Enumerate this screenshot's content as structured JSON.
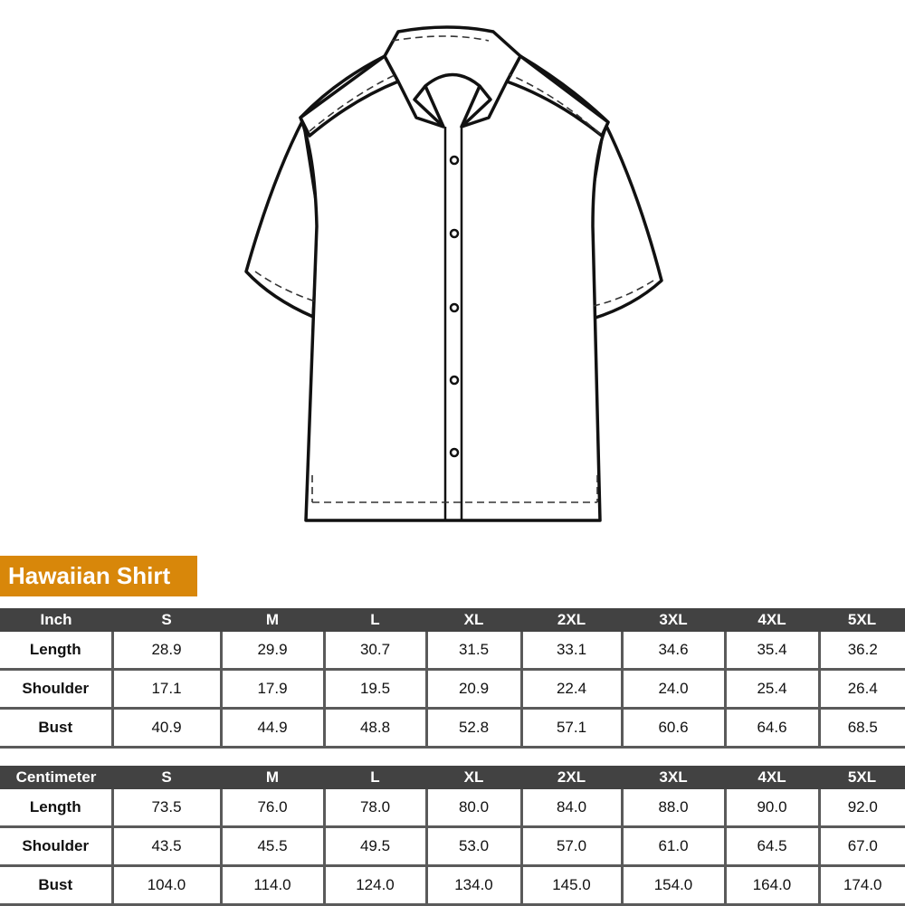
{
  "title": "Hawaiian Shirt",
  "accent_color": "#d8870a",
  "header_color": "#424242",
  "sizes": [
    "S",
    "M",
    "L",
    "XL",
    "2XL",
    "3XL",
    "4XL",
    "5XL"
  ],
  "tables": [
    {
      "unit": "Inch",
      "rows": [
        {
          "label": "Length",
          "values": [
            "28.9",
            "29.9",
            "30.7",
            "31.5",
            "33.1",
            "34.6",
            "35.4",
            "36.2"
          ]
        },
        {
          "label": "Shoulder",
          "values": [
            "17.1",
            "17.9",
            "19.5",
            "20.9",
            "22.4",
            "24.0",
            "25.4",
            "26.4"
          ]
        },
        {
          "label": "Bust",
          "values": [
            "40.9",
            "44.9",
            "48.8",
            "52.8",
            "57.1",
            "60.6",
            "64.6",
            "68.5"
          ]
        }
      ]
    },
    {
      "unit": "Centimeter",
      "rows": [
        {
          "label": "Length",
          "values": [
            "73.5",
            "76.0",
            "78.0",
            "80.0",
            "84.0",
            "88.0",
            "90.0",
            "92.0"
          ]
        },
        {
          "label": "Shoulder",
          "values": [
            "43.5",
            "45.5",
            "49.5",
            "53.0",
            "57.0",
            "61.0",
            "64.5",
            "67.0"
          ]
        },
        {
          "label": "Bust",
          "values": [
            "104.0",
            "114.0",
            "124.0",
            "134.0",
            "145.0",
            "154.0",
            "164.0",
            "174.0"
          ]
        }
      ]
    }
  ]
}
